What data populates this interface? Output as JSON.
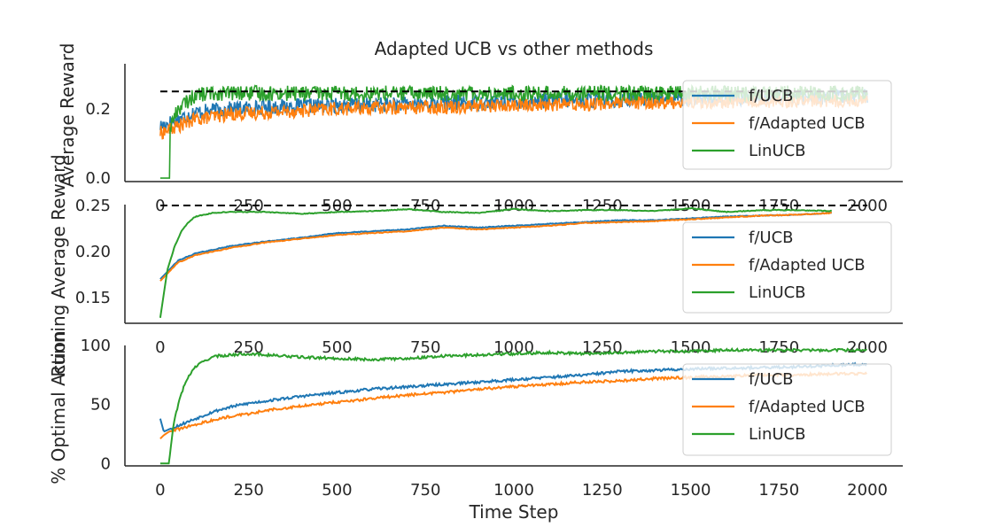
{
  "chart_data": {
    "type": "line",
    "title": "Adapted UCB vs other methods",
    "xlabel": "Time Step",
    "xlim": [
      -100,
      2100
    ],
    "xticks": [
      0,
      250,
      500,
      750,
      1000,
      1250,
      1500,
      1750,
      2000
    ],
    "colors": {
      "f/UCB": "#1f77b4",
      "f/Adapted UCB": "#ff7f0e",
      "LinUCB": "#2ca02c",
      "optimal": "#000000"
    },
    "grid": false,
    "legend_position": "right",
    "panels": [
      {
        "id": "average-reward",
        "ylabel": "Average Reward",
        "ylim": [
          -0.01,
          0.33
        ],
        "yticks": [
          "0.0",
          "0.2"
        ],
        "ytick_values": [
          0.0,
          0.2
        ],
        "optimal_line": {
          "value": 0.25,
          "x_range": [
            0,
            2000
          ]
        },
        "legend": [
          "f/UCB",
          "f/Adapted UCB",
          "LinUCB"
        ],
        "noisy": true,
        "series": [
          {
            "name": "f/UCB",
            "x": [
              0,
              25,
              50,
              100,
              200,
              300,
              500,
              750,
              1000,
              1250,
              1500,
              1750,
              2000
            ],
            "y": [
              0.15,
              0.16,
              0.17,
              0.19,
              0.2,
              0.205,
              0.21,
              0.215,
              0.22,
              0.225,
              0.23,
              0.232,
              0.235
            ],
            "noise": 0.022
          },
          {
            "name": "f/Adapted UCB",
            "x": [
              0,
              25,
              50,
              100,
              200,
              300,
              500,
              750,
              1000,
              1250,
              1500,
              1750,
              2000
            ],
            "y": [
              0.13,
              0.14,
              0.15,
              0.17,
              0.185,
              0.19,
              0.2,
              0.205,
              0.21,
              0.215,
              0.22,
              0.223,
              0.225
            ],
            "noise": 0.02
          },
          {
            "name": "LinUCB",
            "x": [
              0,
              27,
              28,
              50,
              100,
              150,
              250,
              500,
              750,
              1000,
              1250,
              1500,
              1750,
              2000
            ],
            "y": [
              0.0,
              0.0,
              0.15,
              0.2,
              0.24,
              0.245,
              0.245,
              0.245,
              0.245,
              0.245,
              0.245,
              0.245,
              0.245,
              0.245
            ],
            "noise": 0.022
          }
        ]
      },
      {
        "id": "running-average-reward",
        "ylabel": "Running Average Reward",
        "ylim": [
          0.122,
          0.251
        ],
        "yticks": [
          "0.15",
          "0.20",
          "0.25"
        ],
        "ytick_values": [
          0.15,
          0.2,
          0.25
        ],
        "optimal_line": {
          "value": 0.25,
          "x_range": [
            0,
            2000
          ]
        },
        "legend": [
          "f/UCB",
          "f/Adapted UCB",
          "LinUCB"
        ],
        "noisy": false,
        "series": [
          {
            "name": "f/UCB",
            "x": [
              0,
              50,
              100,
              200,
              300,
              400,
              500,
              600,
              700,
              800,
              900,
              1000,
              1100,
              1200,
              1300,
              1400,
              1500,
              1600,
              1700,
              1800,
              1900
            ],
            "y": [
              0.17,
              0.19,
              0.198,
              0.206,
              0.211,
              0.215,
              0.22,
              0.222,
              0.224,
              0.228,
              0.226,
              0.228,
              0.23,
              0.232,
              0.234,
              0.234,
              0.236,
              0.238,
              0.239,
              0.24,
              0.242
            ]
          },
          {
            "name": "f/Adapted UCB",
            "x": [
              0,
              50,
              100,
              200,
              300,
              400,
              500,
              600,
              700,
              800,
              900,
              1000,
              1100,
              1200,
              1300,
              1400,
              1500,
              1600,
              1700,
              1800,
              1900
            ],
            "y": [
              0.168,
              0.188,
              0.196,
              0.204,
              0.21,
              0.214,
              0.218,
              0.22,
              0.222,
              0.226,
              0.224,
              0.226,
              0.228,
              0.231,
              0.232,
              0.233,
              0.235,
              0.237,
              0.239,
              0.24,
              0.242
            ]
          },
          {
            "name": "LinUCB",
            "x": [
              0,
              20,
              40,
              60,
              80,
              100,
              150,
              200,
              300,
              400,
              500,
              600,
              700,
              800,
              900,
              1000,
              1100,
              1200,
              1300,
              1400,
              1500,
              1600,
              1700,
              1800,
              1900
            ],
            "y": [
              0.128,
              0.18,
              0.205,
              0.222,
              0.232,
              0.238,
              0.242,
              0.243,
              0.243,
              0.241,
              0.243,
              0.244,
              0.246,
              0.243,
              0.242,
              0.246,
              0.244,
              0.245,
              0.245,
              0.244,
              0.247,
              0.243,
              0.245,
              0.245,
              0.244
            ]
          }
        ]
      },
      {
        "id": "optimal-action",
        "ylabel": "% Optimal Action",
        "ylim": [
          -2,
          100
        ],
        "yticks": [
          "0",
          "50",
          "100"
        ],
        "ytick_values": [
          0,
          50,
          100
        ],
        "optimal_line": null,
        "legend": [
          "f/UCB",
          "f/Adapted UCB",
          "LinUCB"
        ],
        "noisy": false,
        "series": [
          {
            "name": "f/UCB",
            "x": [
              0,
              10,
              25,
              50,
              100,
              150,
              200,
              250,
              300,
              400,
              500,
              600,
              700,
              800,
              900,
              1000,
              1100,
              1200,
              1300,
              1400,
              1500,
              1600,
              1700,
              1800,
              1900,
              2000
            ],
            "y": [
              38,
              27,
              29,
              32,
              38,
              44,
              48,
              51,
              53,
              57,
              60,
              63,
              65,
              67,
              69,
              71,
              73,
              75,
              78,
              79,
              80,
              81,
              81,
              82,
              83,
              84
            ]
          },
          {
            "name": "f/Adapted UCB",
            "x": [
              0,
              10,
              25,
              50,
              100,
              150,
              200,
              250,
              300,
              400,
              500,
              600,
              700,
              800,
              900,
              1000,
              1100,
              1200,
              1300,
              1400,
              1500,
              1600,
              1700,
              1800,
              1900,
              2000
            ],
            "y": [
              21,
              24,
              27,
              29,
              33,
              37,
              40,
              42,
              45,
              49,
              52,
              55,
              58,
              60,
              63,
              65,
              67,
              69,
              70,
              72,
              73,
              74,
              75,
              75,
              76,
              76
            ]
          },
          {
            "name": "LinUCB",
            "x": [
              0,
              25,
              28,
              40,
              60,
              80,
              100,
              130,
              160,
              200,
              250,
              300,
              400,
              500,
              600,
              700,
              800,
              900,
              1000,
              1100,
              1200,
              1300,
              1400,
              1500,
              1600,
              1700,
              1800,
              1900,
              2000
            ],
            "y": [
              0,
              0,
              10,
              38,
              60,
              74,
              82,
              88,
              91,
              92,
              93,
              92,
              90,
              89,
              88,
              89,
              91,
              92,
              93,
              94,
              93,
              94,
              95,
              95,
              96,
              96,
              96,
              96,
              96
            ]
          }
        ]
      }
    ]
  }
}
